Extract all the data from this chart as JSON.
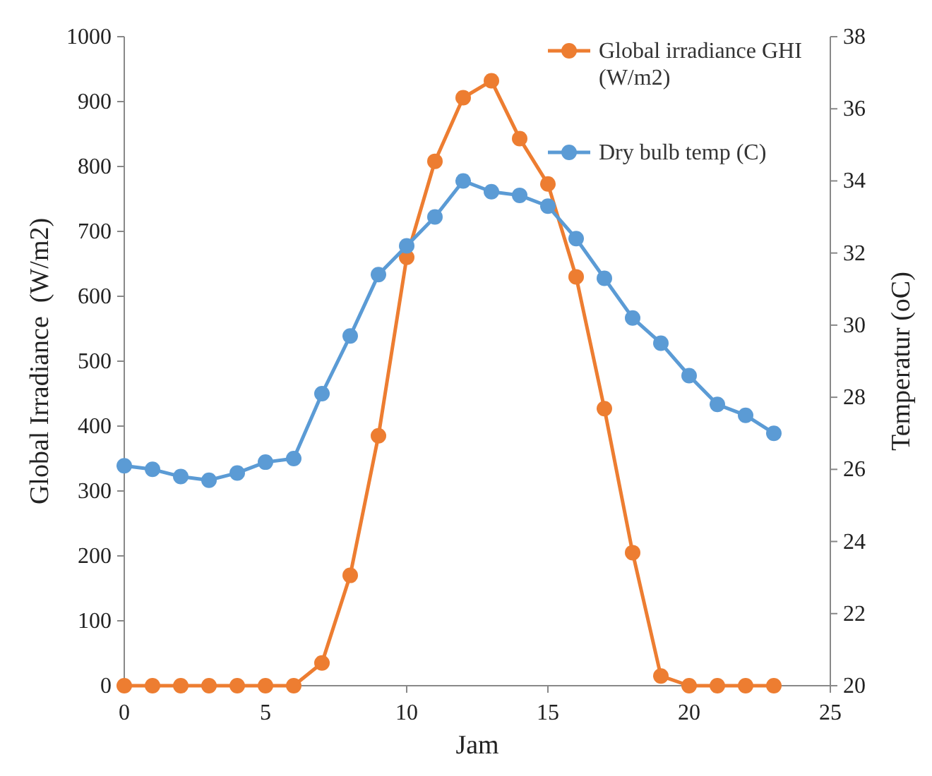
{
  "chart_data": {
    "type": "line",
    "xlabel": "Jam",
    "ylabel": "Global Irradiance  (W/m2)",
    "y2label": "Temperatur (oC)",
    "x": [
      0,
      1,
      2,
      3,
      4,
      5,
      6,
      7,
      8,
      9,
      10,
      11,
      12,
      13,
      14,
      15,
      16,
      17,
      18,
      19,
      20,
      21,
      22,
      23
    ],
    "series": [
      {
        "name": "Global irradiance GHI (W/m2)",
        "color": "#ed7d31",
        "values": [
          0,
          0,
          0,
          0,
          0,
          0,
          0,
          35,
          170,
          385,
          660,
          808,
          906,
          932,
          843,
          773,
          630,
          427,
          205,
          15,
          0,
          0,
          0,
          0
        ]
      },
      {
        "name": "Dry bulb temp (C)",
        "color": "#5b9bd5",
        "axis": "y2",
        "values": [
          26.1,
          26.0,
          25.8,
          25.7,
          25.9,
          26.2,
          26.3,
          28.1,
          29.7,
          31.4,
          32.2,
          33.0,
          34.0,
          33.7,
          33.6,
          33.3,
          32.4,
          31.3,
          30.2,
          29.5,
          28.6,
          27.8,
          27.5,
          27.0
        ]
      }
    ],
    "xlim": [
      0,
      25
    ],
    "xticks": [
      0,
      5,
      10,
      15,
      20,
      25
    ],
    "ylim": [
      0,
      1000
    ],
    "yticks": [
      0,
      100,
      200,
      300,
      400,
      500,
      600,
      700,
      800,
      900,
      1000
    ],
    "y2lim": [
      20,
      38
    ],
    "y2ticks": [
      20,
      22,
      24,
      26,
      28,
      30,
      32,
      34,
      36,
      38
    ],
    "legend": "top right",
    "marker": "circle",
    "line_style": "solid",
    "grid": false
  }
}
